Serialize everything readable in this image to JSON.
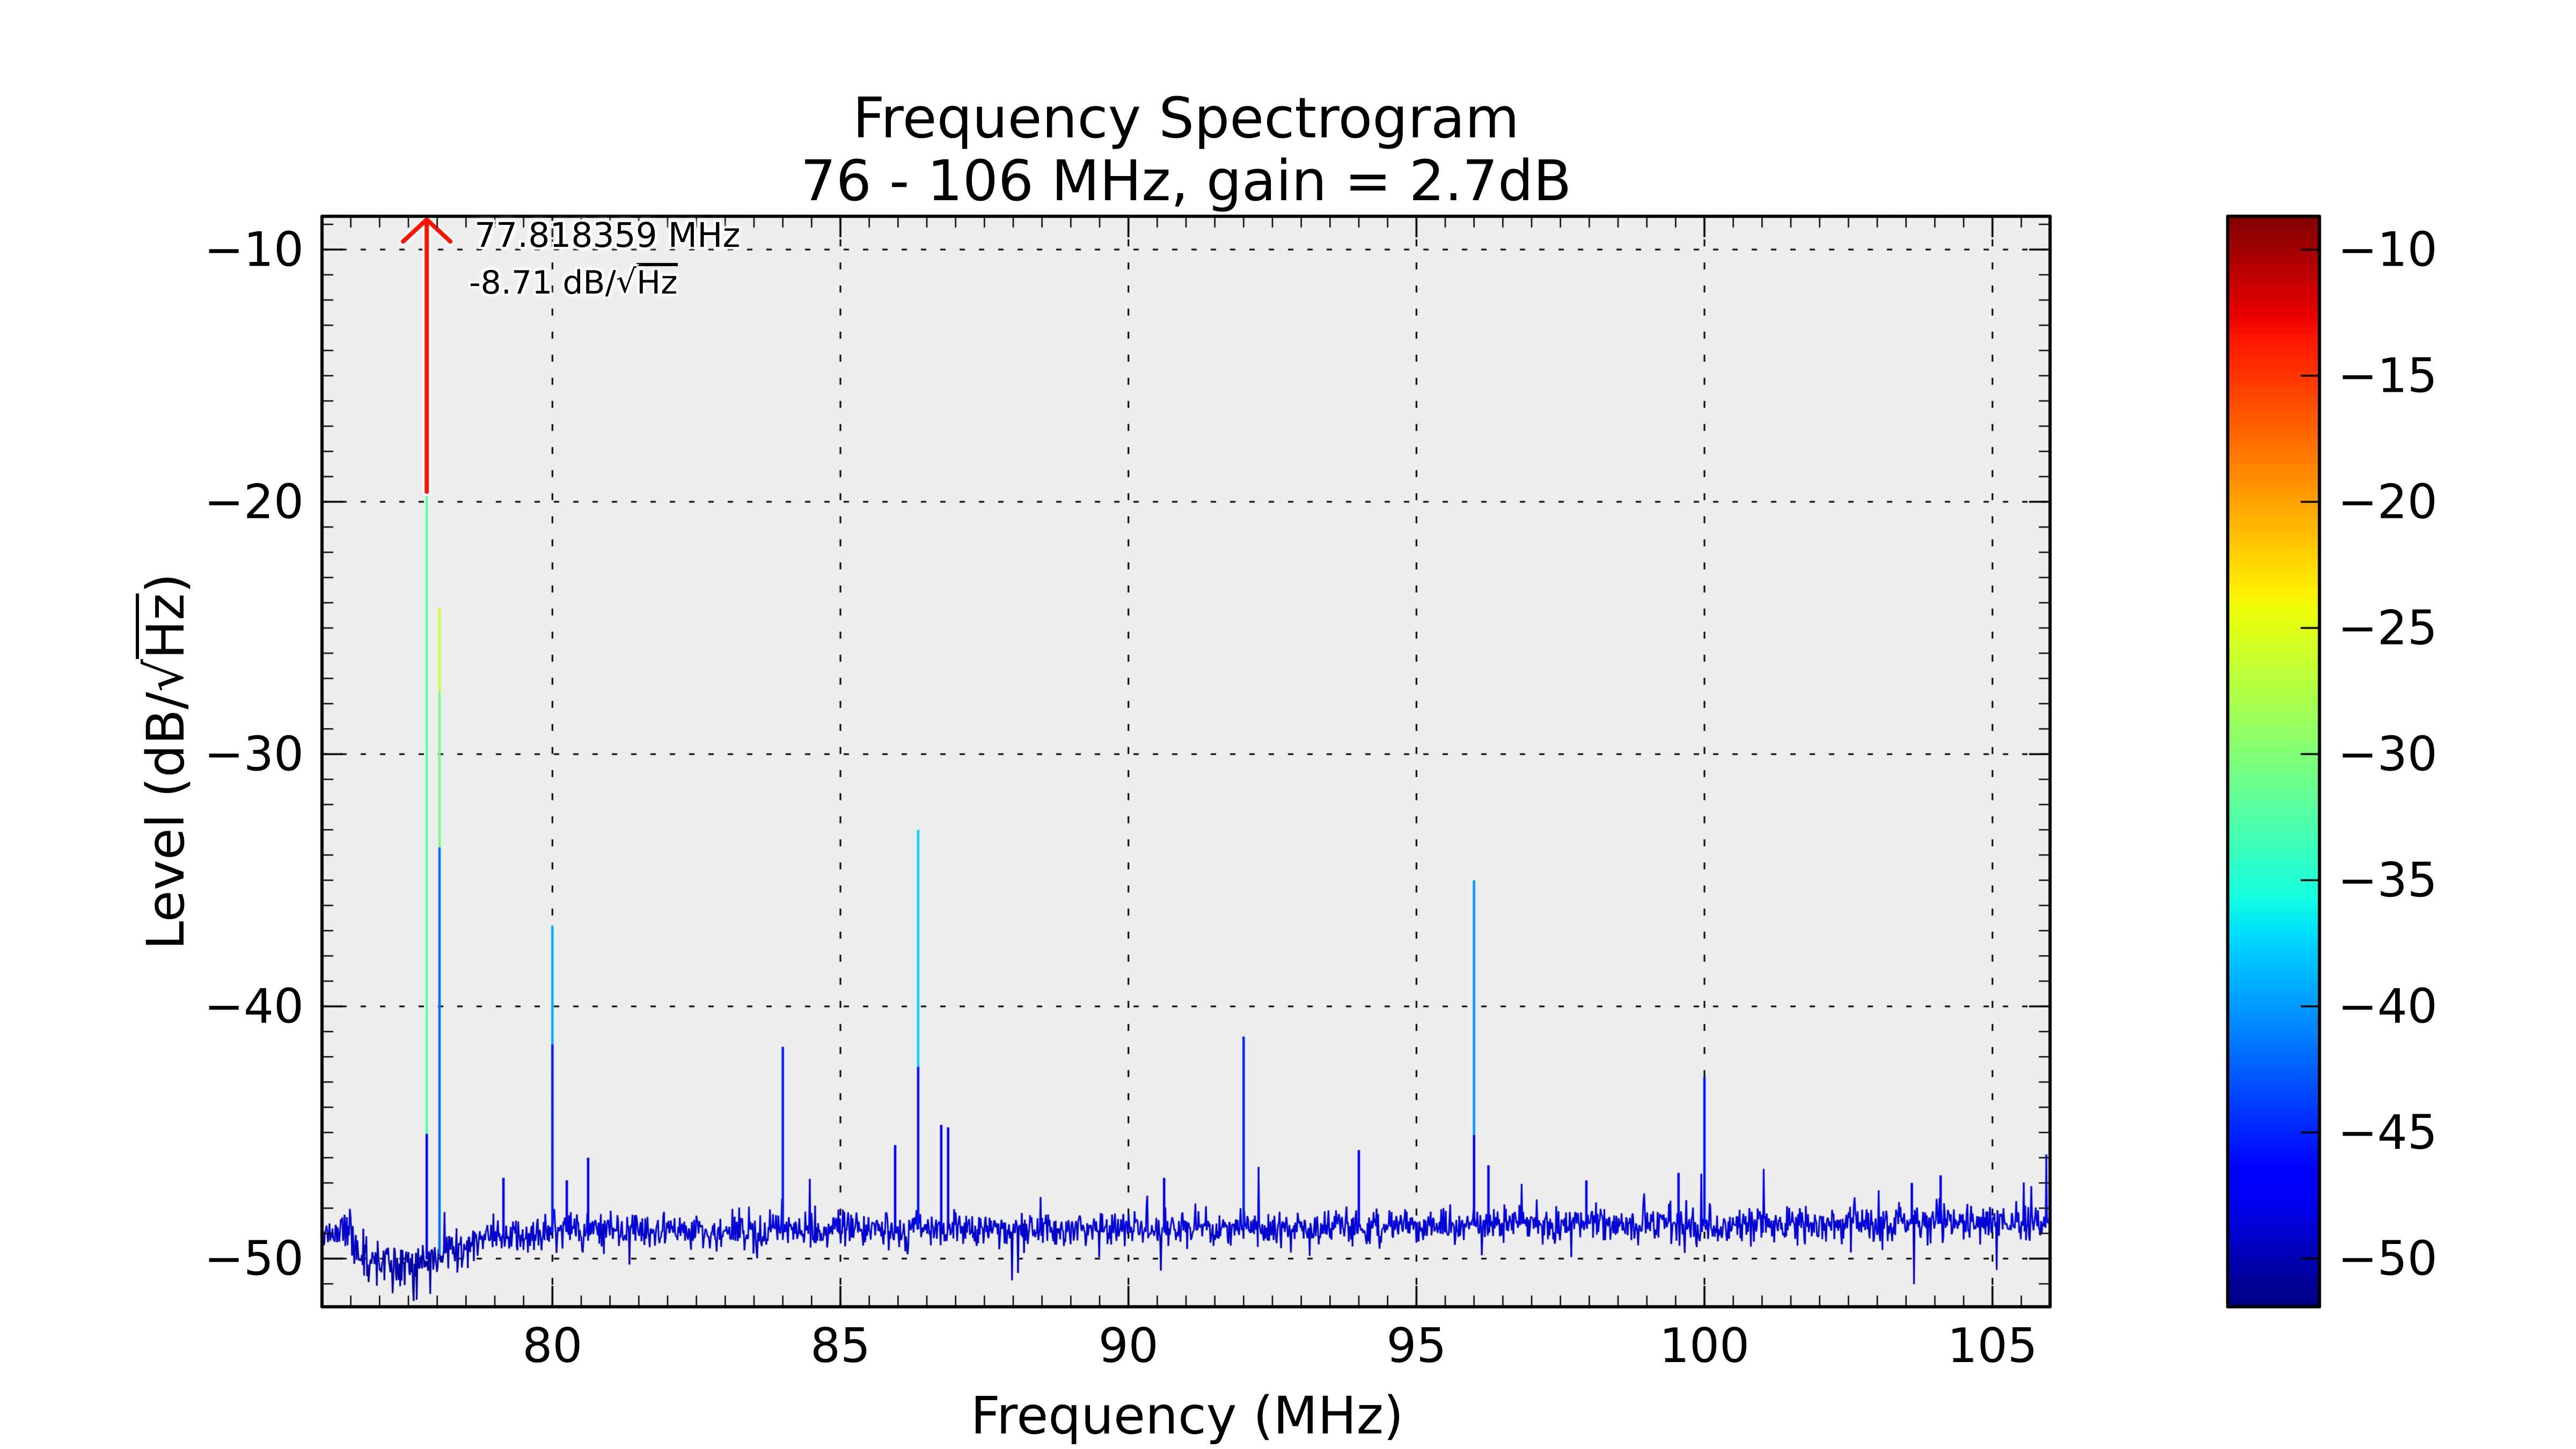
{
  "chart_data": {
    "type": "line",
    "title": "Frequency Spectrogram",
    "subtitle": "76 - 106 MHz, gain = 2.7dB",
    "xlabel": "Frequency (MHz)",
    "ylabel_parts": {
      "prefix": "Level (dB/",
      "sqrt_symbol": "√",
      "unit": "Hz",
      "suffix": ")"
    },
    "xlim": [
      76,
      106
    ],
    "ylim": [
      -51.91,
      -8.68
    ],
    "xticks": [
      80,
      85,
      90,
      95,
      100,
      105
    ],
    "yticks": [
      -10,
      -20,
      -30,
      -40,
      -50
    ],
    "x_minor_step": 0.5,
    "y_minor_step": 1,
    "grid": true,
    "grid_style": "dotted",
    "background_color": "#ededed",
    "noise_color_note": "line segments colored by jet colormap of level",
    "colormap": "jet",
    "main_peak": {
      "freq_mhz": 77.818359,
      "level_db": -8.71
    },
    "annotation": {
      "freq_label": "77.818359 MHz",
      "level_prefix": "-8.71 dB/",
      "sqrt_symbol": "√",
      "level_unit": "Hz",
      "x": 77.818359,
      "y": -8.71,
      "arrow_tail_y": -19.6,
      "arrow_color": "#fa1200"
    },
    "peaks": [
      {
        "f": 77.818359,
        "stops": [
          -45.05,
          -19.6,
          -8.71
        ]
      },
      {
        "f": 78.04,
        "stops": [
          -33.7,
          -27.5,
          -24.2
        ]
      },
      {
        "f": 79.15,
        "stops": [
          -46.8
        ]
      },
      {
        "f": 80.0,
        "stops": [
          -41.5,
          -36.8
        ]
      },
      {
        "f": 80.25,
        "stops": [
          -46.9
        ]
      },
      {
        "f": 80.62,
        "stops": [
          -46.0
        ]
      },
      {
        "f": 84.0,
        "stops": [
          -41.6
        ]
      },
      {
        "f": 85.95,
        "stops": [
          -45.5
        ]
      },
      {
        "f": 86.35,
        "stops": [
          -42.4,
          -33.0
        ]
      },
      {
        "f": 86.75,
        "stops": [
          -44.7
        ]
      },
      {
        "f": 86.87,
        "stops": [
          -44.8
        ]
      },
      {
        "f": 90.62,
        "stops": [
          -46.8
        ]
      },
      {
        "f": 92.0,
        "stops": [
          -41.2
        ]
      },
      {
        "f": 94.0,
        "stops": [
          -45.7
        ]
      },
      {
        "f": 96.0,
        "stops": [
          -45.1,
          -35.0
        ]
      },
      {
        "f": 96.25,
        "stops": [
          -46.3
        ]
      },
      {
        "f": 97.95,
        "stops": [
          -46.9
        ]
      },
      {
        "f": 99.55,
        "stops": [
          -46.6
        ]
      },
      {
        "f": 100.0,
        "stops": [
          -42.8
        ]
      },
      {
        "f": 103.6,
        "stops": [
          -47.0
        ]
      },
      {
        "f": 104.1,
        "stops": [
          -46.7
        ]
      }
    ],
    "noise_floor": {
      "mean_curve": [
        [
          76.0,
          -48.75
        ],
        [
          76.4,
          -48.9
        ],
        [
          76.7,
          -50.0
        ],
        [
          77.0,
          -50.35
        ],
        [
          77.4,
          -50.45
        ],
        [
          77.9,
          -49.95
        ],
        [
          78.4,
          -49.55
        ],
        [
          79.2,
          -49.1
        ],
        [
          80.0,
          -48.95
        ],
        [
          84.0,
          -48.85
        ],
        [
          92.0,
          -48.8
        ],
        [
          98.0,
          -48.65
        ],
        [
          106.0,
          -48.6
        ]
      ],
      "std_regions": [
        [
          76.0,
          76.5,
          0.45
        ],
        [
          76.5,
          78.5,
          0.52
        ],
        [
          78.5,
          79.5,
          0.42
        ],
        [
          79.5,
          106.0,
          0.36
        ]
      ],
      "n_points": 2300,
      "seed": 20240717
    },
    "colorbar": {
      "ticks": [
        -10,
        -15,
        -20,
        -25,
        -30,
        -35,
        -40,
        -45,
        -50
      ],
      "vmin": -51.91,
      "vmax": -8.68,
      "colormap": "jet",
      "position": "right"
    },
    "legend": null
  }
}
